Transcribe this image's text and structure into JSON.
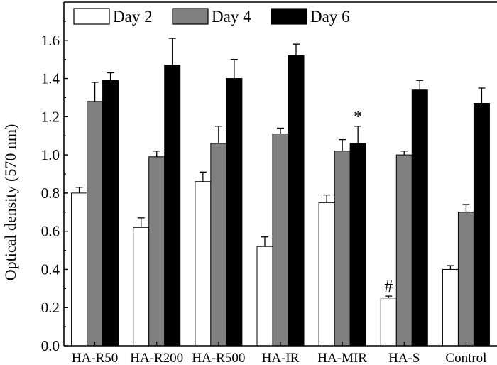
{
  "chart_data": {
    "type": "bar",
    "title": "",
    "xlabel": "",
    "ylabel": "Optical density (570 nm)",
    "ylim": [
      0,
      1.8
    ],
    "yticks": [
      "0.0",
      "0.2",
      "0.4",
      "0.6",
      "0.8",
      "1.0",
      "1.2",
      "1.4",
      "1.6"
    ],
    "categories": [
      "HA-R50",
      "HA-R200",
      "HA-R500",
      "HA-IR",
      "HA-MIR",
      "HA-S",
      "Control"
    ],
    "series": [
      {
        "name": "Day 2",
        "color": "#ffffff",
        "values": [
          0.8,
          0.62,
          0.86,
          0.52,
          0.75,
          0.25,
          0.4
        ],
        "errors": [
          0.03,
          0.05,
          0.05,
          0.05,
          0.04,
          0.01,
          0.02
        ]
      },
      {
        "name": "Day 4",
        "color": "#808080",
        "values": [
          1.28,
          0.99,
          1.06,
          1.11,
          1.02,
          1.0,
          0.7
        ],
        "errors": [
          0.1,
          0.03,
          0.09,
          0.03,
          0.06,
          0.02,
          0.04
        ]
      },
      {
        "name": "Day 6",
        "color": "#000000",
        "values": [
          1.39,
          1.47,
          1.4,
          1.52,
          1.06,
          1.34,
          1.27
        ],
        "errors": [
          0.04,
          0.14,
          0.1,
          0.06,
          0.09,
          0.05,
          0.08
        ]
      }
    ],
    "legend_position": "top-left",
    "grid": false,
    "annotations": [
      {
        "text": "#",
        "category": "HA-S",
        "series": "Day 2"
      },
      {
        "text": "*",
        "category": "HA-MIR",
        "series": "Day 6"
      }
    ]
  }
}
